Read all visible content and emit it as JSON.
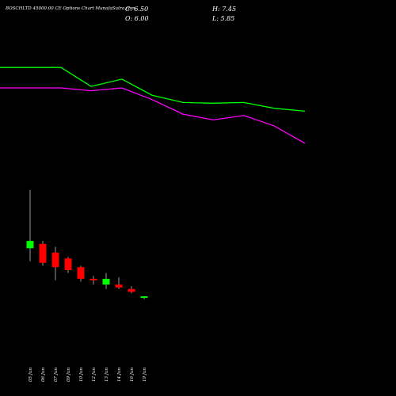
{
  "header": {
    "title": "BOSCHLTD 45000.00  CE Options  Chart MunafaSutra.com",
    "close": "C: 6.50",
    "high": "H: 7.45",
    "open": "O: 6.00",
    "low": "L: 5.85"
  },
  "chart_data": {
    "type": "candlestick",
    "categories": [
      "05 Jun",
      "06 Jun",
      "07 Jun",
      "09 Jun",
      "10 Jun",
      "12 Jun",
      "13 Jun",
      "14 Jun",
      "16 Jun",
      "19 Jun"
    ],
    "candles": [
      {
        "open": 96,
        "high": 136,
        "low": 87,
        "close": 101
      },
      {
        "open": 99,
        "high": 101,
        "low": 84,
        "close": 86
      },
      {
        "open": 93,
        "high": 97,
        "low": 74,
        "close": 83
      },
      {
        "open": 89,
        "high": 90,
        "low": 79,
        "close": 81
      },
      {
        "open": 83,
        "high": 84,
        "low": 73,
        "close": 75
      },
      {
        "open": 75,
        "high": 77,
        "low": 71,
        "close": 74
      },
      {
        "open": 71,
        "high": 79,
        "low": 68,
        "close": 75
      },
      {
        "open": 71,
        "high": 76,
        "low": 68,
        "close": 69
      },
      {
        "open": 68,
        "high": 70,
        "low": 65,
        "close": 66
      },
      {
        "open": 62,
        "high": 63,
        "low": 61,
        "close": 63
      }
    ],
    "ma_green": [
      220,
      220,
      207,
      212,
      201,
      196,
      195.5,
      196,
      192,
      190
    ],
    "ma_magenta": [
      206,
      206,
      204,
      206,
      198,
      188,
      184,
      187,
      180,
      168
    ],
    "ma_x_start": 0,
    "ma_green_color": "#00ff00",
    "ma_magenta_color": "#ff00ff",
    "up_color": "#00ff00",
    "down_color": "#ff0000",
    "ylim": [
      0,
      250
    ]
  }
}
